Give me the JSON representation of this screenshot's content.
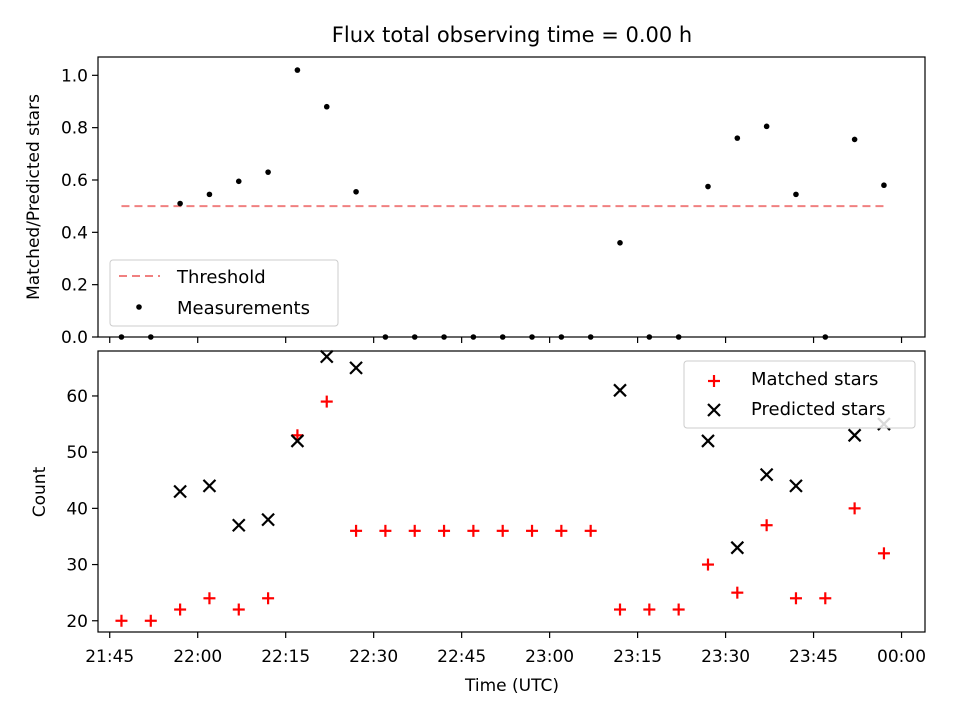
{
  "chart_data": [
    {
      "type": "scatter",
      "title": "Flux total observing time = 0.00 h",
      "xlabel": "",
      "ylabel": "Matched/Predicted stars",
      "ylim": [
        0,
        1.07
      ],
      "xlim": [
        "21:43",
        "00:04"
      ],
      "yticks": [
        "0.0",
        "0.2",
        "0.4",
        "0.6",
        "0.8",
        "1.0"
      ],
      "legend_position": "lower-left",
      "grid": false,
      "x": [
        "21:47",
        "21:52",
        "21:57",
        "22:02",
        "22:07",
        "22:12",
        "22:17",
        "22:22",
        "22:27",
        "22:32",
        "22:37",
        "22:42",
        "22:47",
        "22:52",
        "22:57",
        "23:02",
        "23:07",
        "23:12",
        "23:17",
        "23:22",
        "23:27",
        "23:32",
        "23:37",
        "23:42",
        "23:47",
        "23:52",
        "23:57"
      ],
      "series": [
        {
          "name": "Threshold",
          "style": "dashed-line",
          "color": "#f08080",
          "x": [
            "21:47",
            "23:57"
          ],
          "values": [
            0.5,
            0.5
          ]
        },
        {
          "name": "Measurements",
          "style": "dot",
          "color": "#000000",
          "values": [
            0.0,
            0.0,
            0.51,
            0.545,
            0.595,
            0.63,
            1.02,
            0.88,
            0.555,
            0.0,
            0.0,
            0.0,
            0.0,
            0.0,
            0.0,
            0.0,
            0.0,
            0.36,
            0.0,
            0.0,
            0.575,
            0.76,
            0.805,
            0.545,
            0.0,
            0.755,
            0.58
          ]
        }
      ]
    },
    {
      "type": "scatter",
      "title": "",
      "xlabel": "Time (UTC)",
      "ylabel": "Count",
      "ylim": [
        18,
        68
      ],
      "xlim": [
        "21:43",
        "00:04"
      ],
      "yticks": [
        "20",
        "30",
        "40",
        "50",
        "60"
      ],
      "xticks": [
        "21:45",
        "22:00",
        "22:15",
        "22:30",
        "22:45",
        "23:00",
        "23:15",
        "23:30",
        "23:45",
        "00:00"
      ],
      "legend_position": "upper-right",
      "grid": false,
      "series": [
        {
          "name": "Matched stars",
          "marker": "plus",
          "color": "#ff0000",
          "x": [
            "21:47",
            "21:52",
            "21:57",
            "22:02",
            "22:07",
            "22:12",
            "22:17",
            "22:22",
            "22:27",
            "22:32",
            "22:37",
            "22:42",
            "22:47",
            "22:52",
            "22:57",
            "23:02",
            "23:07",
            "23:12",
            "23:17",
            "23:22",
            "23:27",
            "23:32",
            "23:37",
            "23:42",
            "23:47",
            "23:52",
            "23:57"
          ],
          "values": [
            20,
            20,
            22,
            24,
            22,
            24,
            53,
            59,
            36,
            36,
            36,
            36,
            36,
            36,
            36,
            36,
            36,
            22,
            22,
            22,
            30,
            25,
            37,
            24,
            24,
            40,
            32
          ]
        },
        {
          "name": "Predicted stars",
          "marker": "x",
          "color": "#000000",
          "x": [
            "21:57",
            "22:02",
            "22:07",
            "22:12",
            "22:17",
            "22:22",
            "22:27",
            "23:12",
            "23:27",
            "23:32",
            "23:37",
            "23:42",
            "23:52",
            "23:57"
          ],
          "values": [
            43,
            44,
            37,
            38,
            52,
            67,
            65,
            61,
            52,
            33,
            46,
            44,
            53,
            55
          ]
        }
      ]
    }
  ]
}
